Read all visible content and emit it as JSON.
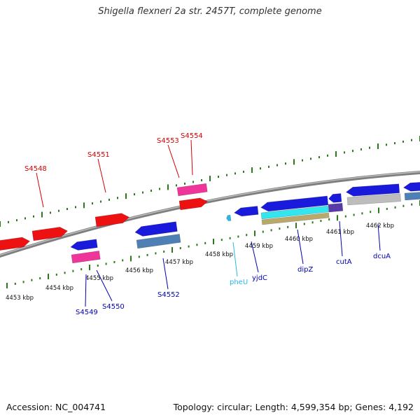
{
  "title": "Shigella flexneri 2a str. 2457T, complete genome",
  "footer": {
    "accession": "Accession: NC_004741",
    "summary": "Topology: circular; Length: 4,599,354 bp; Genes: 4,192"
  },
  "colors": {
    "backbone": "#7f7f7f",
    "tick": "#2a7a1a",
    "forward_label": "#d40000",
    "reverse_label": "#0000b0",
    "trna_label": "#29b8e8",
    "gene_red": "#ee1111",
    "gene_blue": "#1a1adc",
    "pink": "#f0359a",
    "steelblue": "#4e7fb5",
    "cyan": "#33e6ee",
    "tan": "#b8a86a",
    "gray": "#bdbdbd",
    "purple": "#5a3aa8"
  },
  "scale_labels": [
    "4453 kbp",
    "4454 kbp",
    "4455 kbp",
    "4456 kbp",
    "4457 kbp",
    "4458 kbp",
    "4459 kbp",
    "4460 kbp",
    "4461 kbp",
    "4462 kbp"
  ],
  "gene_labels": [
    {
      "text": "S4548",
      "strand": "forward",
      "color": "#d40000"
    },
    {
      "text": "S4551",
      "strand": "forward",
      "color": "#d40000"
    },
    {
      "text": "S4553",
      "strand": "forward",
      "color": "#d40000"
    },
    {
      "text": "S4554",
      "strand": "forward",
      "color": "#d40000"
    },
    {
      "text": "S4549",
      "strand": "reverse",
      "color": "#0000b0"
    },
    {
      "text": "S4550",
      "strand": "reverse",
      "color": "#0000b0"
    },
    {
      "text": "S4552",
      "strand": "reverse",
      "color": "#0000b0"
    },
    {
      "text": "pheU",
      "strand": "reverse",
      "color": "#29b8e8"
    },
    {
      "text": "yjdC",
      "strand": "reverse",
      "color": "#0000b0"
    },
    {
      "text": "dipZ",
      "strand": "reverse",
      "color": "#0000b0"
    },
    {
      "text": "cutA",
      "strand": "reverse",
      "color": "#0000b0"
    },
    {
      "text": "dcuA",
      "strand": "reverse",
      "color": "#0000b0"
    }
  ]
}
